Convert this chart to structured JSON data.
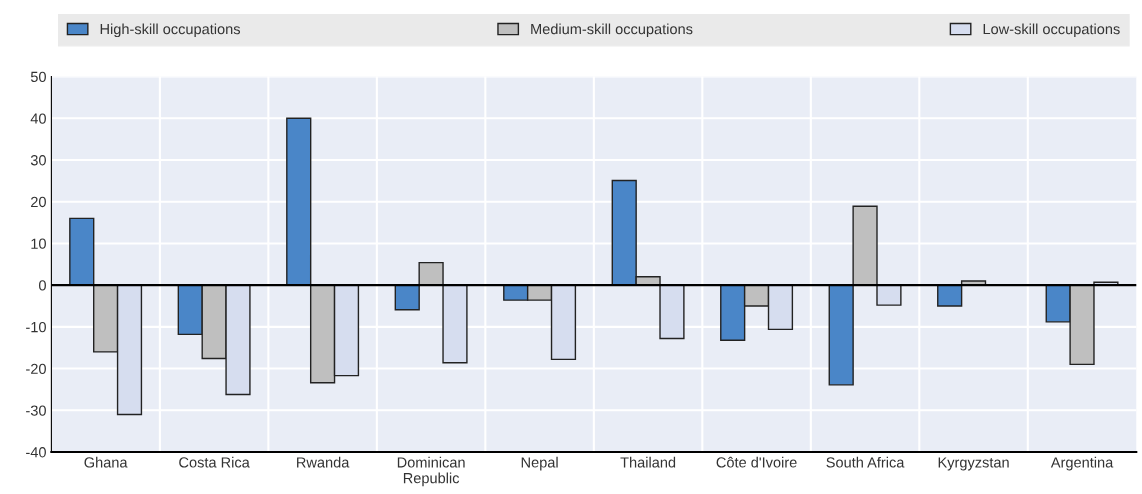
{
  "chart_data": {
    "type": "bar",
    "categories": [
      "Ghana",
      "Costa Rica",
      "Rwanda",
      "Dominican\nRepublic",
      "Nepal",
      "Thailand",
      "Côte d'Ivoire",
      "South Africa",
      "Kyrgyzstan",
      "Argentina"
    ],
    "series": [
      {
        "name": "High-skill occupations",
        "color": "#4a86c8",
        "values": [
          16,
          -11.8,
          40,
          -5.9,
          -3.6,
          25.1,
          -13.2,
          -23.9,
          -5.0,
          -8.8
        ]
      },
      {
        "name": "Medium-skill occupations",
        "color": "#bfbfbf",
        "values": [
          -16,
          -17.6,
          -23.4,
          5.4,
          -3.6,
          2.0,
          -5.0,
          18.9,
          1.0,
          -19.0
        ]
      },
      {
        "name": "Low-skill occupations",
        "color": "#d6ddef",
        "values": [
          -31,
          -26.2,
          -21.7,
          -18.6,
          -17.8,
          -12.8,
          -10.6,
          -4.8,
          null,
          0.7
        ]
      }
    ],
    "ylim": [
      -40,
      50
    ],
    "yticks": [
      -40,
      -30,
      -20,
      -10,
      0,
      10,
      20,
      30,
      40,
      50
    ],
    "grid": true,
    "legend": "top"
  }
}
